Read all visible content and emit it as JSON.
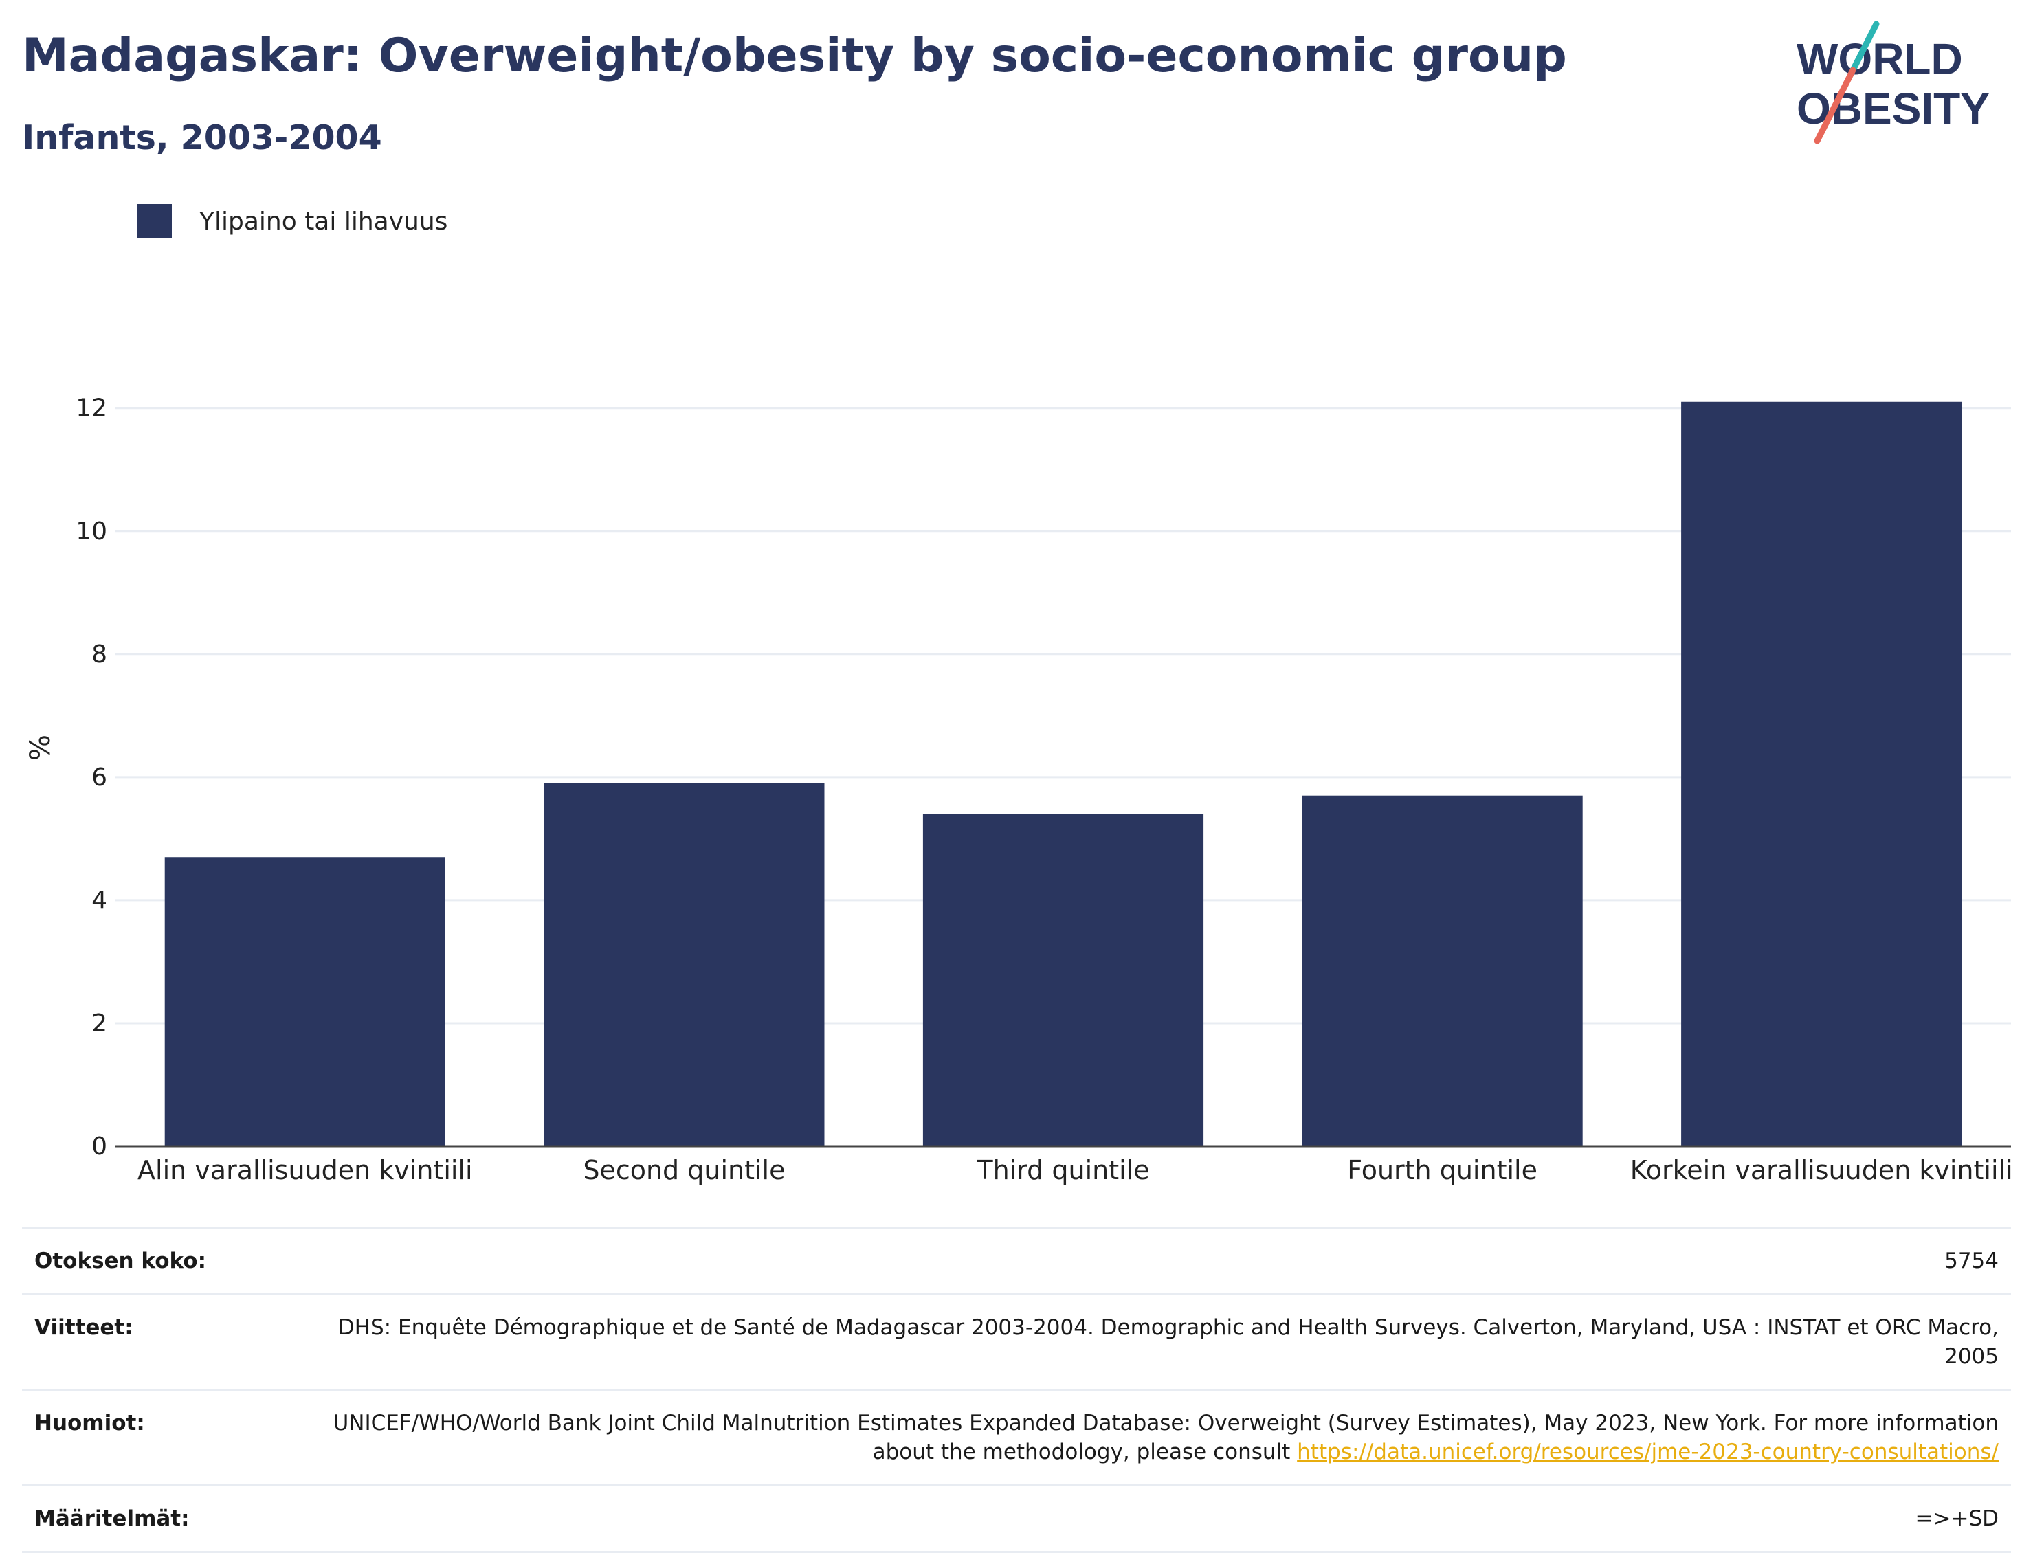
{
  "header": {
    "title": "Madagaskar: Overweight/obesity by socio-economic group",
    "subtitle": "Infants, 2003-2004"
  },
  "logo": {
    "line1": "WORLD",
    "line2": "OBESITY",
    "stroke_colors": [
      "#2bb5b3",
      "#e8685a"
    ],
    "text_color": "#2a365f"
  },
  "legend": {
    "label": "Ylipaino tai lihavuus",
    "color": "#2a365f"
  },
  "chart_data": {
    "type": "bar",
    "categories": [
      "Alin varallisuuden kvintiili",
      "Second quintile",
      "Third quintile",
      "Fourth quintile",
      "Korkein varallisuuden kvintiili"
    ],
    "series": [
      {
        "name": "Ylipaino tai lihavuus",
        "values": [
          4.7,
          5.9,
          5.4,
          5.7,
          12.1
        ],
        "color": "#2a365f"
      }
    ],
    "ylabel": "%",
    "ylim": [
      0,
      12.6
    ],
    "yticks": [
      0,
      2,
      4,
      6,
      8,
      10,
      12
    ],
    "grid": true,
    "legend_position": "top-left"
  },
  "meta": {
    "sample_size": {
      "label": "Otoksen koko:",
      "value": "5754"
    },
    "references": {
      "label": "Viitteet:",
      "value": "DHS: Enquête Démographique et de Santé de Madagascar 2003-2004. Demographic and Health Surveys. Calverton, Maryland, USA : INSTAT et ORC Macro, 2005"
    },
    "notes": {
      "label": "Huomiot:",
      "text": "UNICEF/WHO/World Bank Joint Child Malnutrition Estimates Expanded Database: Overweight (Survey Estimates), May 2023, New York. For more information about the methodology, please consult",
      "link": "https://data.unicef.org/resources/jme-2023-country-consultations/"
    },
    "definitions": {
      "label": "Määritelmät:",
      "value": "=>+SD"
    }
  }
}
